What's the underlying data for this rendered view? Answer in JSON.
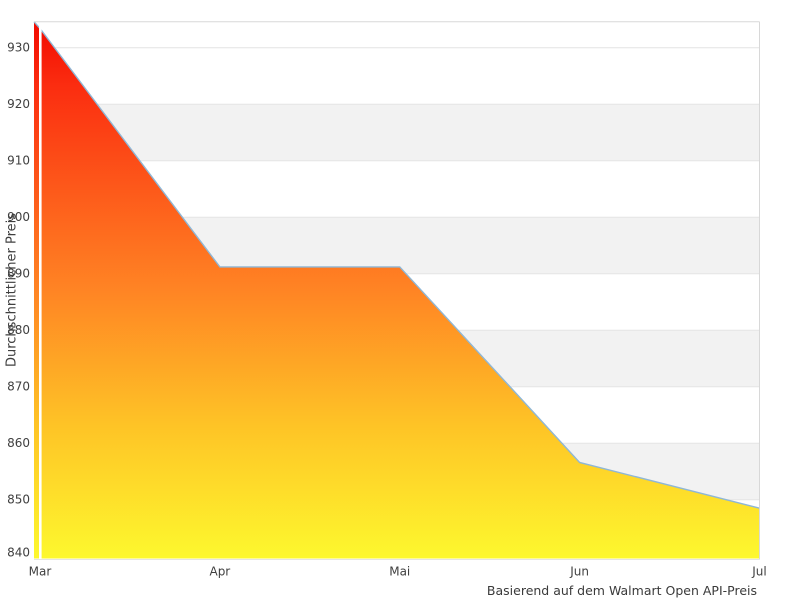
{
  "chart_data": {
    "type": "area",
    "title": "",
    "x": [
      "Mar",
      "Apr",
      "Mai",
      "Jun",
      "Jul"
    ],
    "values": [
      933.4,
      891.2,
      891.2,
      856.6,
      848.5
    ],
    "ylabel": "Durchschnittlicher Preis",
    "xlabel": "",
    "caption": "Basierend auf dem Walmart Open API-Preis",
    "ylim": [
      839.6,
      934.6
    ],
    "yticks": [
      840,
      850,
      860,
      870,
      880,
      890,
      900,
      910,
      920,
      930
    ],
    "gray_band_lower_ticks": [
      850,
      870,
      890,
      910
    ],
    "legend": "none",
    "grid": "horizontal gridlines with alternating gray/white bands",
    "colors": {
      "line": "#8fb7d6",
      "band": "#f2f2f2",
      "gridline": "#e4e4e4",
      "border": "#d8d8d8",
      "text": "#3f3f3f",
      "background": "#ffffff",
      "gradient_stops": [
        [
          "0%",
          "#f20a00"
        ],
        [
          "12%",
          "#fb2d10"
        ],
        [
          "50%",
          "#ff8424"
        ],
        [
          "75%",
          "#fec326"
        ],
        [
          "100%",
          "#fdf82e"
        ]
      ]
    }
  }
}
